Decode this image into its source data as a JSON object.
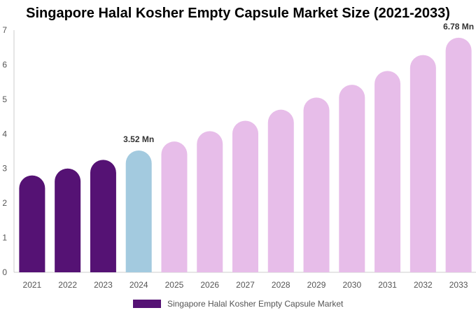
{
  "chart_data": {
    "type": "bar",
    "title": "Singapore Halal Kosher Empty Capsule Market Size (2021-2033)",
    "xlabel": "",
    "ylabel": "",
    "categories": [
      "2021",
      "2022",
      "2023",
      "2024",
      "2025",
      "2026",
      "2027",
      "2028",
      "2029",
      "2030",
      "2031",
      "2032",
      "2033"
    ],
    "series": [
      {
        "name": "Singapore Halal Kosher Empty Capsule Market",
        "values": [
          2.8,
          3.0,
          3.25,
          3.52,
          3.78,
          4.08,
          4.38,
          4.7,
          5.05,
          5.42,
          5.82,
          6.28,
          6.78
        ]
      }
    ],
    "ylim": [
      0,
      7
    ],
    "yticks": [
      0,
      1,
      2,
      3,
      4,
      5,
      6,
      7
    ],
    "data_labels": [
      {
        "index": 3,
        "text": "3.52 Mn"
      },
      {
        "index": 12,
        "text": "6.78 Mn"
      }
    ],
    "colors": {
      "historical": "#551274",
      "base_year": "#a3cadf",
      "forecast": "#e7bde9",
      "legend": "#551274",
      "axis": "#cccccc"
    },
    "grid": false,
    "legend_position": "bottom"
  }
}
